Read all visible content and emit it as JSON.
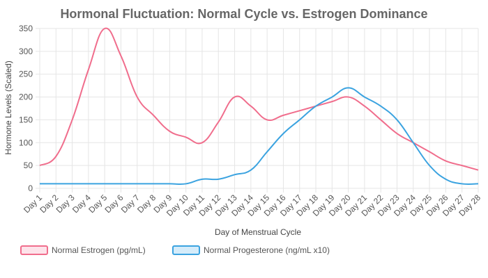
{
  "chart_data": {
    "type": "line",
    "title": "Hormonal Fluctuation: Normal Cycle vs. Estrogen Dominance",
    "xlabel": "Day of Menstrual Cycle",
    "ylabel": "Hormone Levels (Scaled)",
    "ylim": [
      0,
      350
    ],
    "yticks": [
      0,
      50,
      100,
      150,
      200,
      250,
      300,
      350
    ],
    "grid": true,
    "legend_position": "bottom-left",
    "categories": [
      "Day 1",
      "Day 2",
      "Day 3",
      "Day 4",
      "Day 5",
      "Day 6",
      "Day 7",
      "Day 8",
      "Day 9",
      "Day 10",
      "Day 11",
      "Day 12",
      "Day 13",
      "Day 14",
      "Day 15",
      "Day 16",
      "Day 17",
      "Day 18",
      "Day 19",
      "Day 20",
      "Day 21",
      "Day 22",
      "Day 23",
      "Day 24",
      "Day 25",
      "Day 26",
      "Day 27",
      "Day 28"
    ],
    "series": [
      {
        "name": "Normal Estrogen (pg/mL)",
        "color": "#f06d8c",
        "fill": "#fde3ea",
        "values": [
          50,
          70,
          150,
          260,
          350,
          290,
          200,
          160,
          125,
          112,
          100,
          145,
          200,
          180,
          150,
          160,
          170,
          180,
          190,
          200,
          180,
          150,
          120,
          100,
          80,
          60,
          50,
          40
        ]
      },
      {
        "name": "Normal Progesterone (ng/mL x10)",
        "color": "#3ba3e0",
        "fill": "#d5ecfa",
        "values": [
          10,
          10,
          10,
          10,
          10,
          10,
          10,
          10,
          10,
          10,
          20,
          20,
          30,
          40,
          80,
          120,
          150,
          180,
          200,
          220,
          200,
          180,
          150,
          100,
          50,
          20,
          10,
          10
        ]
      }
    ]
  }
}
